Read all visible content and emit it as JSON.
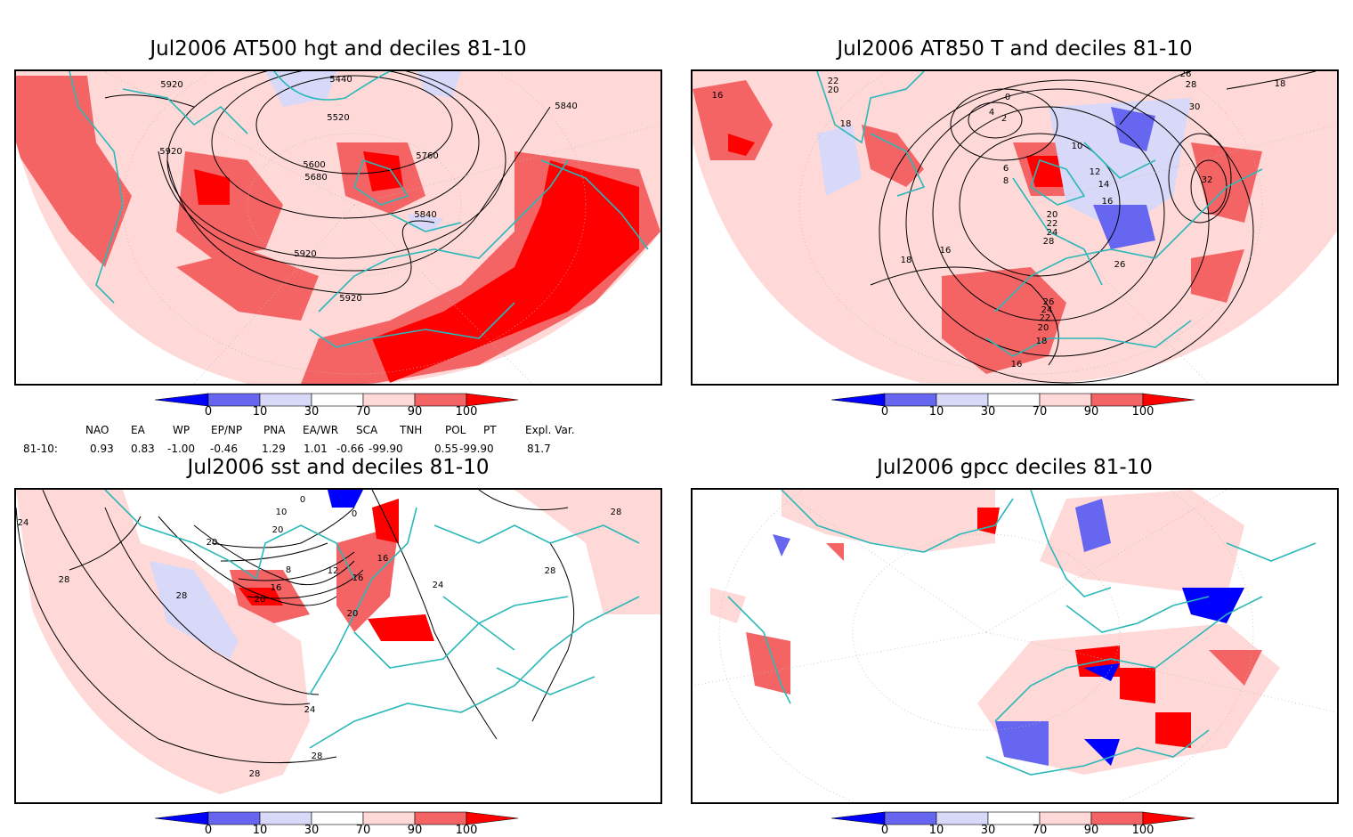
{
  "panels": [
    {
      "title": "Jul2006 AT500 hgt and deciles 81-10",
      "contour_labels": [
        "5440",
        "5920",
        "5520",
        "5840",
        "5920",
        "5600",
        "5760",
        "5680",
        "5840",
        "5920",
        "5920"
      ]
    },
    {
      "title": "Jul2006 AT850 T and deciles 81-10",
      "contour_labels": [
        "16",
        "22",
        "20",
        "18",
        "0",
        "4",
        "2",
        "26",
        "28",
        "30",
        "18",
        "10",
        "6",
        "8",
        "12",
        "14",
        "32",
        "16",
        "20",
        "22",
        "24",
        "28",
        "16",
        "18",
        "26",
        "26",
        "24",
        "22",
        "20",
        "18",
        "16"
      ]
    },
    {
      "title": "Jul2006 sst and deciles 81-10",
      "contour_labels": [
        "24",
        "0",
        "10",
        "0",
        "20",
        "28",
        "28",
        "8",
        "12",
        "16",
        "20",
        "28",
        "16",
        "20",
        "16",
        "24",
        "24",
        "28",
        "28",
        "28",
        "20"
      ]
    },
    {
      "title": "Jul2006 gpcc deciles 81-10",
      "contour_labels": []
    }
  ],
  "colorbar": {
    "ticks": [
      "0",
      "10",
      "30",
      "70",
      "90",
      "100"
    ],
    "colors": [
      "#0000ff",
      "#6666f0",
      "#d8d8f8",
      "#ffffff",
      "#ffd8d8",
      "#f46464",
      "#ff0000"
    ]
  },
  "indices": {
    "headers": [
      "NAO",
      "EA",
      "WP",
      "EP/NP",
      "PNA",
      "EA/WR",
      "SCA",
      "TNH",
      "POL",
      "PT",
      "Expl. Var."
    ],
    "row_label": "81-10:",
    "values": [
      "0.93",
      "0.83",
      "-1.00",
      "-0.46",
      "1.29",
      "1.01",
      "-0.66",
      "-99.90",
      "0.55",
      "-99.90",
      "81.7"
    ]
  },
  "style": {
    "coast_color": "#2ab8b8",
    "frame_color": "#000000"
  }
}
